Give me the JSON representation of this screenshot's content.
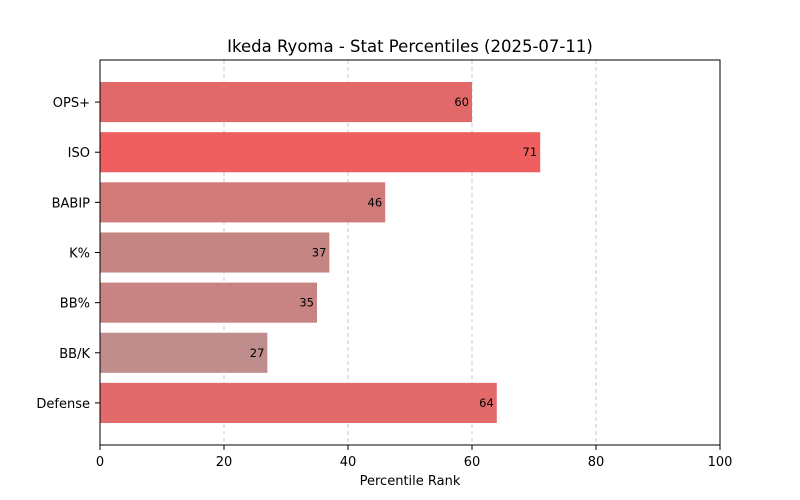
{
  "chart_data": {
    "type": "bar",
    "orientation": "horizontal",
    "title": "Ikeda Ryoma - Stat Percentiles (2025-07-11)",
    "xlabel": "Percentile Rank",
    "ylabel": "",
    "xlim": [
      0,
      100
    ],
    "x_ticks": [
      0,
      20,
      40,
      60,
      80,
      100
    ],
    "grid": "x-dashed",
    "categories": [
      "OPS+",
      "ISO",
      "BABIP",
      "K%",
      "BB%",
      "BB/K",
      "Defense"
    ],
    "values": [
      60,
      71,
      46,
      37,
      35,
      27,
      64
    ],
    "colors": [
      "#e26969",
      "#ef5f5f",
      "#d07b78",
      "#c58583",
      "#c78482",
      "#bf8d8b",
      "#e26a6a"
    ]
  }
}
